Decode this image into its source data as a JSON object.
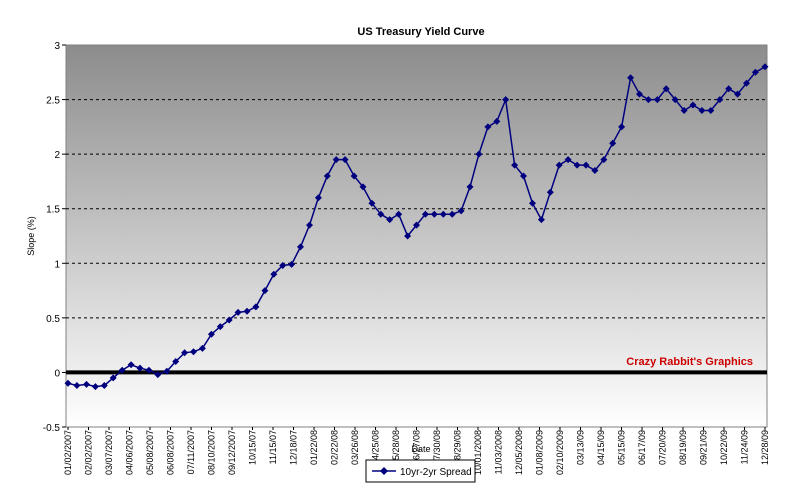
{
  "chart_data": {
    "type": "line",
    "title": "US Treasury Yield Curve",
    "xlabel": "Date",
    "ylabel": "Slope (%)",
    "ylim": [
      -0.5,
      3
    ],
    "yticks": [
      "-0.5",
      "0",
      "0.5",
      "1",
      "1.5",
      "2",
      "2.5",
      "3"
    ],
    "grid": "horizontal dashed",
    "legend_position": "bottom",
    "watermark": "Crazy Rabbit's Graphics",
    "colors": {
      "series": "#00007f",
      "zero_line": "#000000",
      "watermark": "#cc0000"
    },
    "x_tick_labels": [
      "01/02/2007",
      "02/02/2007",
      "03/07/2007",
      "04/06/2007",
      "05/08/2007",
      "06/08/2007",
      "07/11/2007",
      "08/10/2007",
      "09/12/2007",
      "10/15/07",
      "11/15/07",
      "12/18/07",
      "01/22/08",
      "02/22/08",
      "03/26/08",
      "04/25/08",
      "05/28/08",
      "06/27/08",
      "07/30/08",
      "08/29/08",
      "10/01/2008",
      "11/03/2008",
      "12/05/2008",
      "01/08/2009",
      "02/10/2009",
      "03/13/09",
      "04/15/09",
      "05/15/09",
      "06/17/09",
      "07/20/09",
      "08/19/09",
      "09/21/09",
      "10/22/09",
      "11/24/09",
      "12/28/09"
    ],
    "series": [
      {
        "name": "10yr-2yr Spread",
        "values": [
          [
            "01/02/2007",
            -0.1
          ],
          [
            "01/16/2007",
            -0.12
          ],
          [
            "01/31/2007",
            -0.11
          ],
          [
            "02/14/2007",
            -0.13
          ],
          [
            "02/28/2007",
            -0.12
          ],
          [
            "03/14/2007",
            -0.05
          ],
          [
            "03/28/2007",
            0.02
          ],
          [
            "04/11/2007",
            0.07
          ],
          [
            "04/25/2007",
            0.04
          ],
          [
            "05/09/2007",
            0.02
          ],
          [
            "05/23/2007",
            -0.02
          ],
          [
            "06/06/2007",
            0.01
          ],
          [
            "06/20/2007",
            0.1
          ],
          [
            "07/04/2007",
            0.18
          ],
          [
            "07/18/2007",
            0.19
          ],
          [
            "08/01/2007",
            0.22
          ],
          [
            "08/15/2007",
            0.35
          ],
          [
            "08/29/2007",
            0.42
          ],
          [
            "09/12/2007",
            0.48
          ],
          [
            "09/26/2007",
            0.55
          ],
          [
            "10/10/2007",
            0.56
          ],
          [
            "10/24/2007",
            0.6
          ],
          [
            "11/07/2007",
            0.75
          ],
          [
            "11/21/2007",
            0.9
          ],
          [
            "12/05/2007",
            0.98
          ],
          [
            "12/19/2007",
            0.99
          ],
          [
            "01/02/2008",
            1.15
          ],
          [
            "01/16/2008",
            1.35
          ],
          [
            "01/30/2008",
            1.6
          ],
          [
            "02/13/2008",
            1.8
          ],
          [
            "02/27/2008",
            1.95
          ],
          [
            "03/12/2008",
            1.95
          ],
          [
            "03/26/2008",
            1.8
          ],
          [
            "04/09/2008",
            1.7
          ],
          [
            "04/23/2008",
            1.55
          ],
          [
            "05/07/2008",
            1.45
          ],
          [
            "05/21/2008",
            1.4
          ],
          [
            "06/04/2008",
            1.45
          ],
          [
            "06/18/2008",
            1.25
          ],
          [
            "07/02/2008",
            1.35
          ],
          [
            "07/16/2008",
            1.45
          ],
          [
            "07/30/2008",
            1.45
          ],
          [
            "08/13/2008",
            1.45
          ],
          [
            "08/27/2008",
            1.45
          ],
          [
            "09/10/2008",
            1.48
          ],
          [
            "09/24/2008",
            1.7
          ],
          [
            "10/08/2008",
            2.0
          ],
          [
            "10/22/2008",
            2.25
          ],
          [
            "11/05/2008",
            2.3
          ],
          [
            "11/19/2008",
            2.5
          ],
          [
            "12/03/2008",
            1.9
          ],
          [
            "12/17/2008",
            1.8
          ],
          [
            "12/31/2008",
            1.55
          ],
          [
            "01/14/2009",
            1.4
          ],
          [
            "01/28/2009",
            1.65
          ],
          [
            "02/11/2009",
            1.9
          ],
          [
            "02/25/2009",
            1.95
          ],
          [
            "03/11/2009",
            1.9
          ],
          [
            "03/25/2009",
            1.9
          ],
          [
            "04/08/2009",
            1.85
          ],
          [
            "04/22/2009",
            1.95
          ],
          [
            "05/06/2009",
            2.1
          ],
          [
            "05/20/2009",
            2.25
          ],
          [
            "06/03/2009",
            2.7
          ],
          [
            "06/17/2009",
            2.55
          ],
          [
            "07/01/2009",
            2.5
          ],
          [
            "07/15/2009",
            2.5
          ],
          [
            "07/29/2009",
            2.6
          ],
          [
            "08/12/2009",
            2.5
          ],
          [
            "08/26/2009",
            2.4
          ],
          [
            "09/09/2009",
            2.45
          ],
          [
            "09/23/2009",
            2.4
          ],
          [
            "10/07/2009",
            2.4
          ],
          [
            "10/21/2009",
            2.5
          ],
          [
            "11/04/2009",
            2.6
          ],
          [
            "11/18/2009",
            2.55
          ],
          [
            "12/02/2009",
            2.65
          ],
          [
            "12/16/2009",
            2.75
          ],
          [
            "12/31/2009",
            2.8
          ]
        ]
      }
    ]
  }
}
